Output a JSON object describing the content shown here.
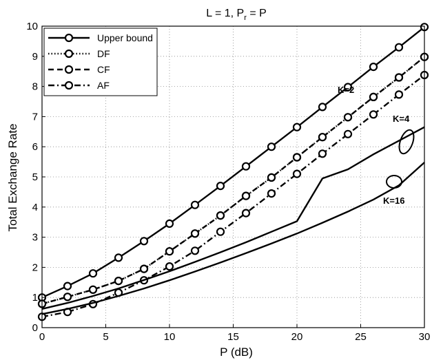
{
  "chart_data": {
    "type": "line",
    "title": "L = 1, P",
    "title_sub": "r",
    "title_tail": " = P",
    "xlabel": "P (dB)",
    "ylabel": "Total Exchange Rate",
    "xlim": [
      0,
      30
    ],
    "ylim": [
      0,
      10
    ],
    "xticks": [
      0,
      5,
      10,
      15,
      20,
      25,
      30
    ],
    "yticks": [
      0,
      1,
      2,
      3,
      4,
      5,
      6,
      7,
      8,
      9,
      10
    ],
    "grid": true,
    "legend_position": "top-left",
    "legend": [
      {
        "label": "Upper bound",
        "style": "solid"
      },
      {
        "label": "DF",
        "style": "dotted"
      },
      {
        "label": "CF",
        "style": "dashed"
      },
      {
        "label": "AF",
        "style": "dashdot"
      }
    ],
    "x": [
      0,
      2,
      4,
      6,
      8,
      10,
      12,
      14,
      16,
      18,
      20,
      22,
      24,
      26,
      28,
      30
    ],
    "groups": [
      {
        "label": "K=2",
        "series": [
          {
            "name": "Upper bound",
            "style": "solid",
            "values": [
              1.0,
              1.38,
              1.8,
              2.32,
              2.87,
              3.45,
              4.07,
              4.7,
              5.35,
              6.0,
              6.65,
              7.32,
              7.98,
              8.65,
              9.3,
              9.97
            ]
          },
          {
            "name": "DF",
            "style": "dotted",
            "values": [
              0.79,
              1.02,
              1.26,
              1.55,
              1.95,
              2.53,
              3.12,
              3.72,
              4.37,
              4.98,
              5.65,
              6.32,
              6.98,
              7.65,
              8.3,
              8.98
            ]
          },
          {
            "name": "CF",
            "style": "dashed",
            "values": [
              0.79,
              1.02,
              1.26,
              1.55,
              1.95,
              2.53,
              3.12,
              3.72,
              4.37,
              4.98,
              5.65,
              6.32,
              6.98,
              7.65,
              8.3,
              8.98
            ]
          },
          {
            "name": "AF",
            "style": "dashdot",
            "values": [
              0.36,
              0.52,
              0.78,
              1.16,
              1.57,
              2.03,
              2.55,
              3.18,
              3.8,
              4.45,
              5.1,
              5.77,
              6.42,
              7.07,
              7.73,
              8.38
            ]
          }
        ]
      },
      {
        "label": "K=4",
        "series": [
          {
            "name": "Upper bound",
            "style": "solid",
            "values": [
              0.62,
              0.82,
              1.05,
              1.3,
              1.58,
              1.87,
              2.18,
              2.5,
              2.83,
              3.18,
              3.53,
              4.95,
              5.25,
              5.75,
              6.2,
              6.65
            ]
          }
        ]
      },
      {
        "label": "K=16",
        "series": [
          {
            "name": "Upper bound",
            "style": "solid",
            "values": [
              0.45,
              0.62,
              0.82,
              1.05,
              1.3,
              1.57,
              1.86,
              2.16,
              2.47,
              2.79,
              3.12,
              3.48,
              3.85,
              4.25,
              4.72,
              5.48
            ]
          }
        ]
      }
    ],
    "annotations": [
      "K=2",
      "K=4",
      "K=16"
    ]
  }
}
